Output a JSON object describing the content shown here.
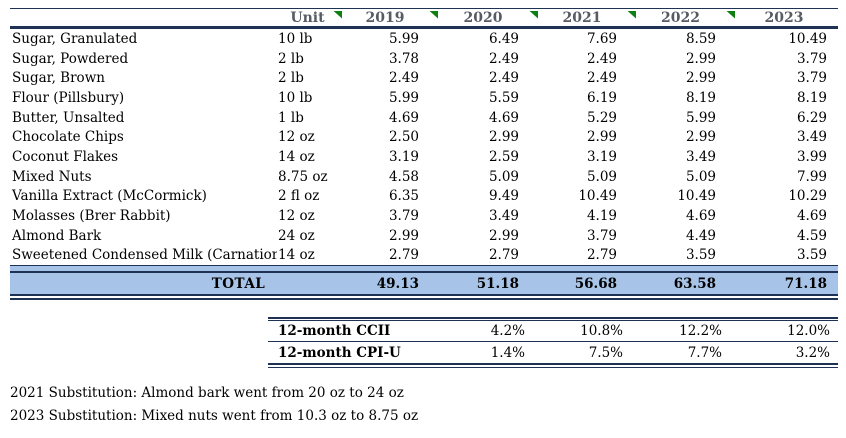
{
  "table": {
    "headers": {
      "item": "",
      "unit": "Unit",
      "years": [
        "2019",
        "2020",
        "2021",
        "2022",
        "2023"
      ]
    },
    "rows": [
      {
        "name": "Sugar, Granulated",
        "unit": "10 lb",
        "prices": [
          "5.99",
          "6.49",
          "7.69",
          "8.59",
          "10.49"
        ]
      },
      {
        "name": "Sugar, Powdered",
        "unit": "2 lb",
        "prices": [
          "3.78",
          "2.49",
          "2.49",
          "2.99",
          "3.79"
        ]
      },
      {
        "name": "Sugar, Brown",
        "unit": "2 lb",
        "prices": [
          "2.49",
          "2.49",
          "2.49",
          "2.99",
          "3.79"
        ]
      },
      {
        "name": "Flour (Pillsbury)",
        "unit": "10 lb",
        "prices": [
          "5.99",
          "5.59",
          "6.19",
          "8.19",
          "8.19"
        ]
      },
      {
        "name": "Butter, Unsalted",
        "unit": "1 lb",
        "prices": [
          "4.69",
          "4.69",
          "5.29",
          "5.99",
          "6.29"
        ]
      },
      {
        "name": "Chocolate Chips",
        "unit": "12 oz",
        "prices": [
          "2.50",
          "2.99",
          "2.99",
          "2.99",
          "3.49"
        ]
      },
      {
        "name": "Coconut Flakes",
        "unit": "14 oz",
        "prices": [
          "3.19",
          "2.59",
          "3.19",
          "3.49",
          "3.99"
        ]
      },
      {
        "name": "Mixed Nuts",
        "unit": "8.75 oz",
        "prices": [
          "4.58",
          "5.09",
          "5.09",
          "5.09",
          "7.99"
        ]
      },
      {
        "name": "Vanilla Extract (McCormick)",
        "unit": "2 fl oz",
        "prices": [
          "6.35",
          "9.49",
          "10.49",
          "10.49",
          "10.29"
        ]
      },
      {
        "name": "Molasses (Brer Rabbit)",
        "unit": "12 oz",
        "prices": [
          "3.79",
          "3.49",
          "4.19",
          "4.69",
          "4.69"
        ]
      },
      {
        "name": "Almond Bark",
        "unit": "24 oz",
        "prices": [
          "2.99",
          "2.99",
          "3.79",
          "4.49",
          "4.59"
        ]
      },
      {
        "name": "Sweetened Condensed Milk (Carnation",
        "unit": "14 oz",
        "prices": [
          "2.79",
          "2.79",
          "2.79",
          "3.59",
          "3.59"
        ]
      }
    ],
    "total": {
      "label": "TOTAL",
      "values": [
        "49.13",
        "51.18",
        "56.68",
        "63.58",
        "71.18"
      ]
    }
  },
  "indices": {
    "rows": [
      {
        "label": "12-month CCII",
        "values": [
          "4.2%",
          "10.8%",
          "12.2%",
          "12.0%"
        ]
      },
      {
        "label": "12-month CPI-U",
        "values": [
          "1.4%",
          "7.5%",
          "7.7%",
          "3.2%"
        ]
      }
    ]
  },
  "footnotes": [
    "2021 Substitution: Almond bark went from 20 oz to 24 oz",
    "2023 Substitution: Mixed nuts went from 10.3 oz to 8.75 oz"
  ],
  "colors": {
    "fill_blue": "#a7c4e8",
    "border_navy": "#1e3254",
    "header_text": "#565b64",
    "flag_green": "#0c8010"
  }
}
